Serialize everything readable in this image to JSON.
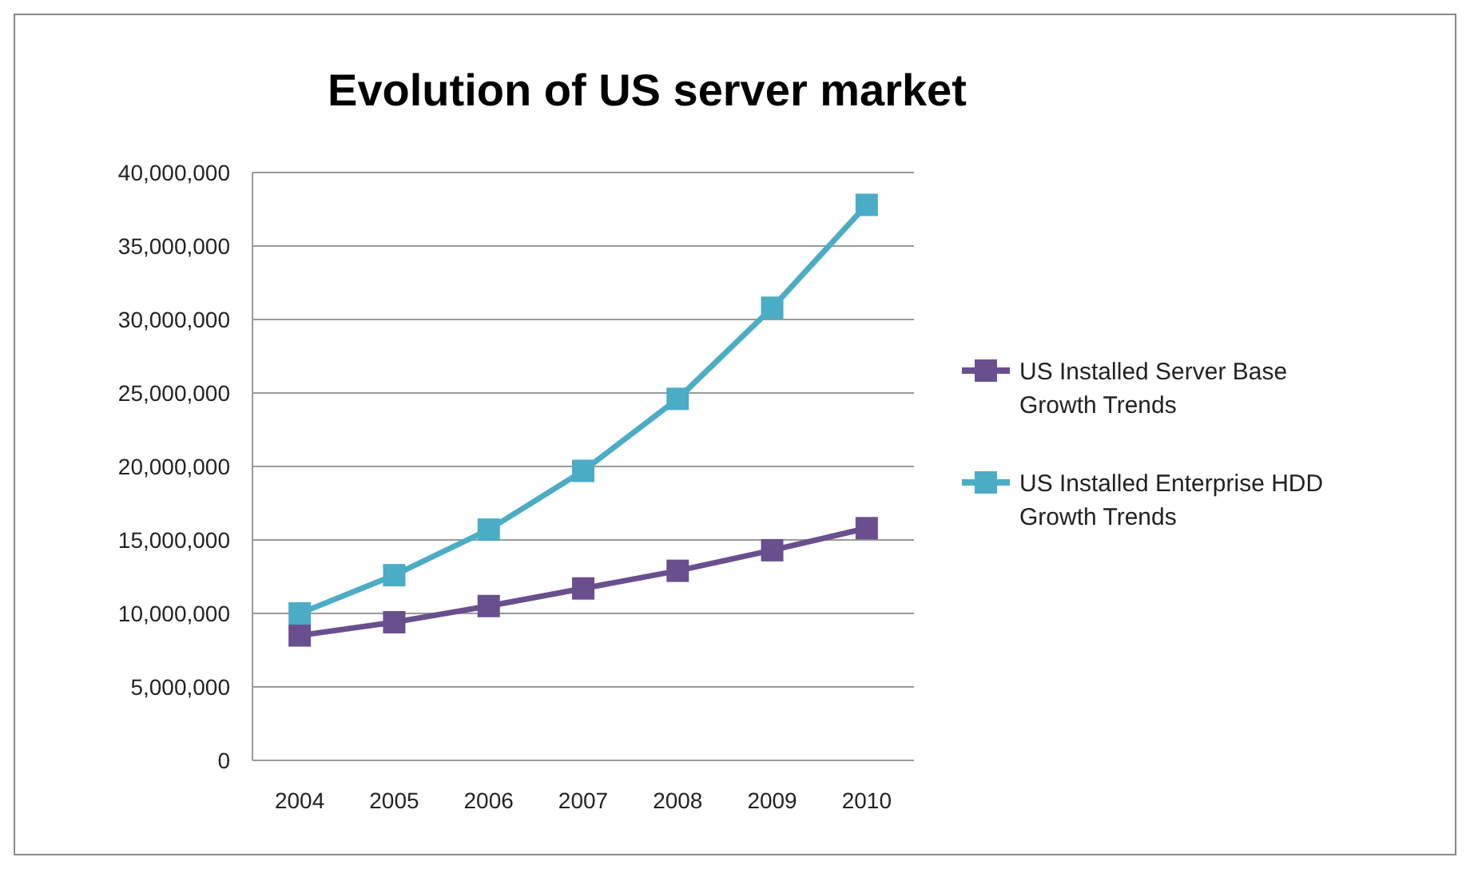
{
  "chart_data": {
    "type": "line",
    "title": "Evolution of US server market",
    "categories": [
      "2004",
      "2005",
      "2006",
      "2007",
      "2008",
      "2009",
      "2010"
    ],
    "series": [
      {
        "name": "US Installed Server Base Growth Trends",
        "color": "#6a4f8f",
        "values": [
          8500000,
          9400000,
          10500000,
          11700000,
          12900000,
          14300000,
          15800000
        ]
      },
      {
        "name": "US Installed Enterprise HDD Growth Trends",
        "color": "#4bacc6",
        "values": [
          10000000,
          12600000,
          15700000,
          19700000,
          24600000,
          30800000,
          37800000
        ]
      }
    ],
    "ylim": [
      0,
      40000000
    ],
    "yticks": [
      {
        "value": 0,
        "label": "0"
      },
      {
        "value": 5000000,
        "label": "5,000,000"
      },
      {
        "value": 10000000,
        "label": "10,000,000"
      },
      {
        "value": 15000000,
        "label": "15,000,000"
      },
      {
        "value": 20000000,
        "label": "20,000,000"
      },
      {
        "value": 25000000,
        "label": "25,000,000"
      },
      {
        "value": 30000000,
        "label": "30,000,000"
      },
      {
        "value": 35000000,
        "label": "35,000,000"
      },
      {
        "value": 40000000,
        "label": "40,000,000"
      }
    ],
    "grid": "y",
    "legend": "right",
    "marker": "square",
    "line_style": "solid"
  }
}
